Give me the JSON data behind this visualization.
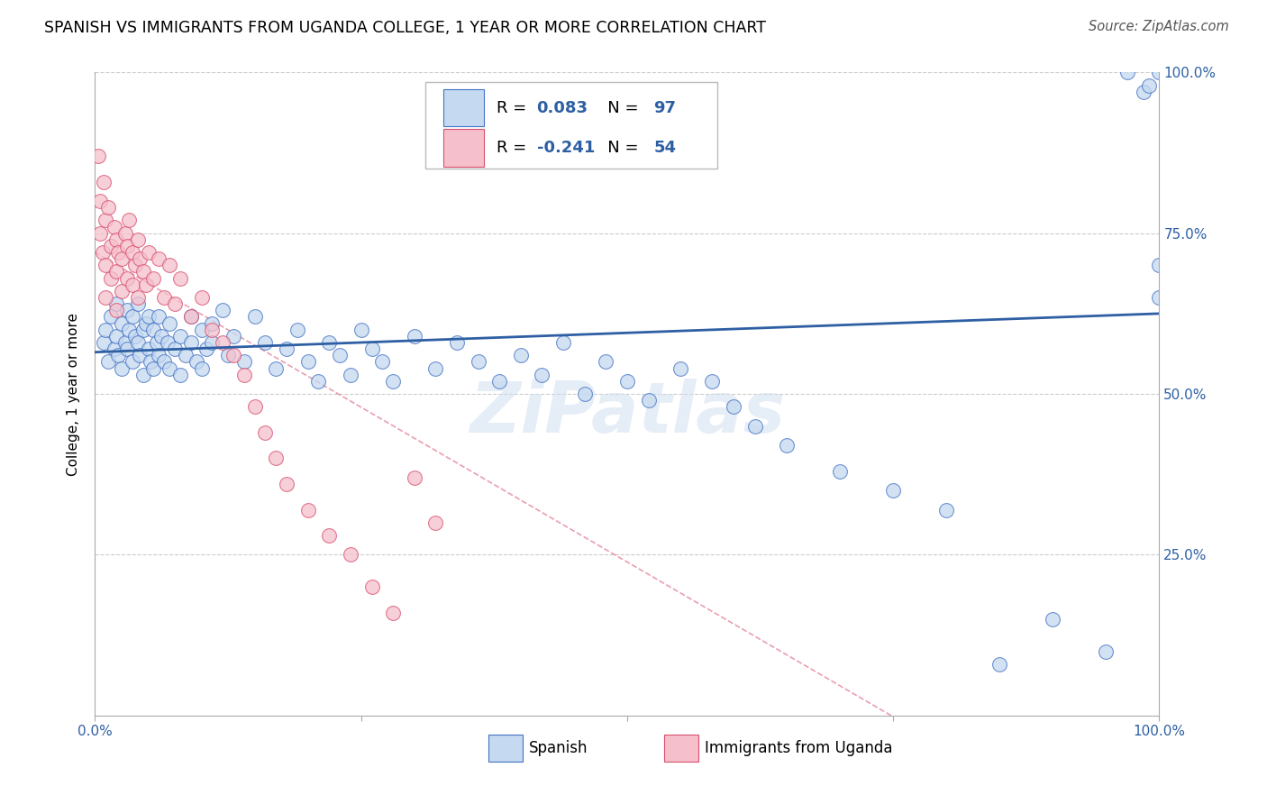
{
  "title": "SPANISH VS IMMIGRANTS FROM UGANDA COLLEGE, 1 YEAR OR MORE CORRELATION CHART",
  "source": "Source: ZipAtlas.com",
  "ylabel": "College, 1 year or more",
  "R_spanish": 0.083,
  "N_spanish": 97,
  "R_uganda": -0.241,
  "N_uganda": 54,
  "blue_fill": "#c5d9f0",
  "blue_edge": "#4472c4",
  "pink_fill": "#f5c0cb",
  "pink_edge": "#d94f6e",
  "blue_line": "#2e5fa3",
  "pink_line": "#d94f6e",
  "watermark": "ZiPatlas",
  "sp_x": [
    0.8,
    1.0,
    1.2,
    1.5,
    1.8,
    2.0,
    2.0,
    2.2,
    2.5,
    2.5,
    2.8,
    3.0,
    3.0,
    3.2,
    3.5,
    3.5,
    3.8,
    4.0,
    4.0,
    4.2,
    4.5,
    4.5,
    4.8,
    5.0,
    5.0,
    5.2,
    5.5,
    5.5,
    5.8,
    6.0,
    6.0,
    6.2,
    6.5,
    6.8,
    7.0,
    7.0,
    7.5,
    8.0,
    8.0,
    8.5,
    9.0,
    9.0,
    9.5,
    10.0,
    10.0,
    10.5,
    11.0,
    11.0,
    12.0,
    12.5,
    13.0,
    14.0,
    15.0,
    16.0,
    17.0,
    18.0,
    19.0,
    20.0,
    21.0,
    22.0,
    23.0,
    24.0,
    25.0,
    26.0,
    27.0,
    28.0,
    30.0,
    32.0,
    34.0,
    36.0,
    38.0,
    40.0,
    42.0,
    44.0,
    46.0,
    48.0,
    50.0,
    52.0,
    55.0,
    58.0,
    60.0,
    62.0,
    65.0,
    70.0,
    75.0,
    80.0,
    85.0,
    90.0,
    95.0,
    97.0,
    98.5,
    99.0,
    100.0,
    100.0,
    100.0
  ],
  "sp_y": [
    58,
    60,
    55,
    62,
    57,
    59,
    64,
    56,
    61,
    54,
    58,
    63,
    57,
    60,
    62,
    55,
    59,
    58,
    64,
    56,
    60,
    53,
    61,
    57,
    62,
    55,
    60,
    54,
    58,
    56,
    62,
    59,
    55,
    58,
    61,
    54,
    57,
    59,
    53,
    56,
    58,
    62,
    55,
    60,
    54,
    57,
    61,
    58,
    63,
    56,
    59,
    55,
    62,
    58,
    54,
    57,
    60,
    55,
    52,
    58,
    56,
    53,
    60,
    57,
    55,
    52,
    59,
    54,
    58,
    55,
    52,
    56,
    53,
    58,
    50,
    55,
    52,
    49,
    54,
    52,
    48,
    45,
    42,
    38,
    35,
    32,
    8,
    15,
    10,
    100,
    97,
    98,
    100,
    65,
    70
  ],
  "ug_x": [
    0.3,
    0.5,
    0.5,
    0.7,
    0.8,
    1.0,
    1.0,
    1.0,
    1.2,
    1.5,
    1.5,
    1.8,
    2.0,
    2.0,
    2.0,
    2.2,
    2.5,
    2.5,
    2.8,
    3.0,
    3.0,
    3.2,
    3.5,
    3.5,
    3.8,
    4.0,
    4.0,
    4.2,
    4.5,
    4.8,
    5.0,
    5.5,
    6.0,
    6.5,
    7.0,
    7.5,
    8.0,
    9.0,
    10.0,
    11.0,
    12.0,
    13.0,
    14.0,
    15.0,
    16.0,
    17.0,
    18.0,
    20.0,
    22.0,
    24.0,
    26.0,
    28.0,
    30.0,
    32.0
  ],
  "ug_y": [
    87,
    75,
    80,
    72,
    83,
    77,
    70,
    65,
    79,
    73,
    68,
    76,
    74,
    69,
    63,
    72,
    71,
    66,
    75,
    73,
    68,
    77,
    72,
    67,
    70,
    74,
    65,
    71,
    69,
    67,
    72,
    68,
    71,
    65,
    70,
    64,
    68,
    62,
    65,
    60,
    58,
    56,
    53,
    48,
    44,
    40,
    36,
    32,
    28,
    25,
    20,
    16,
    37,
    30
  ]
}
